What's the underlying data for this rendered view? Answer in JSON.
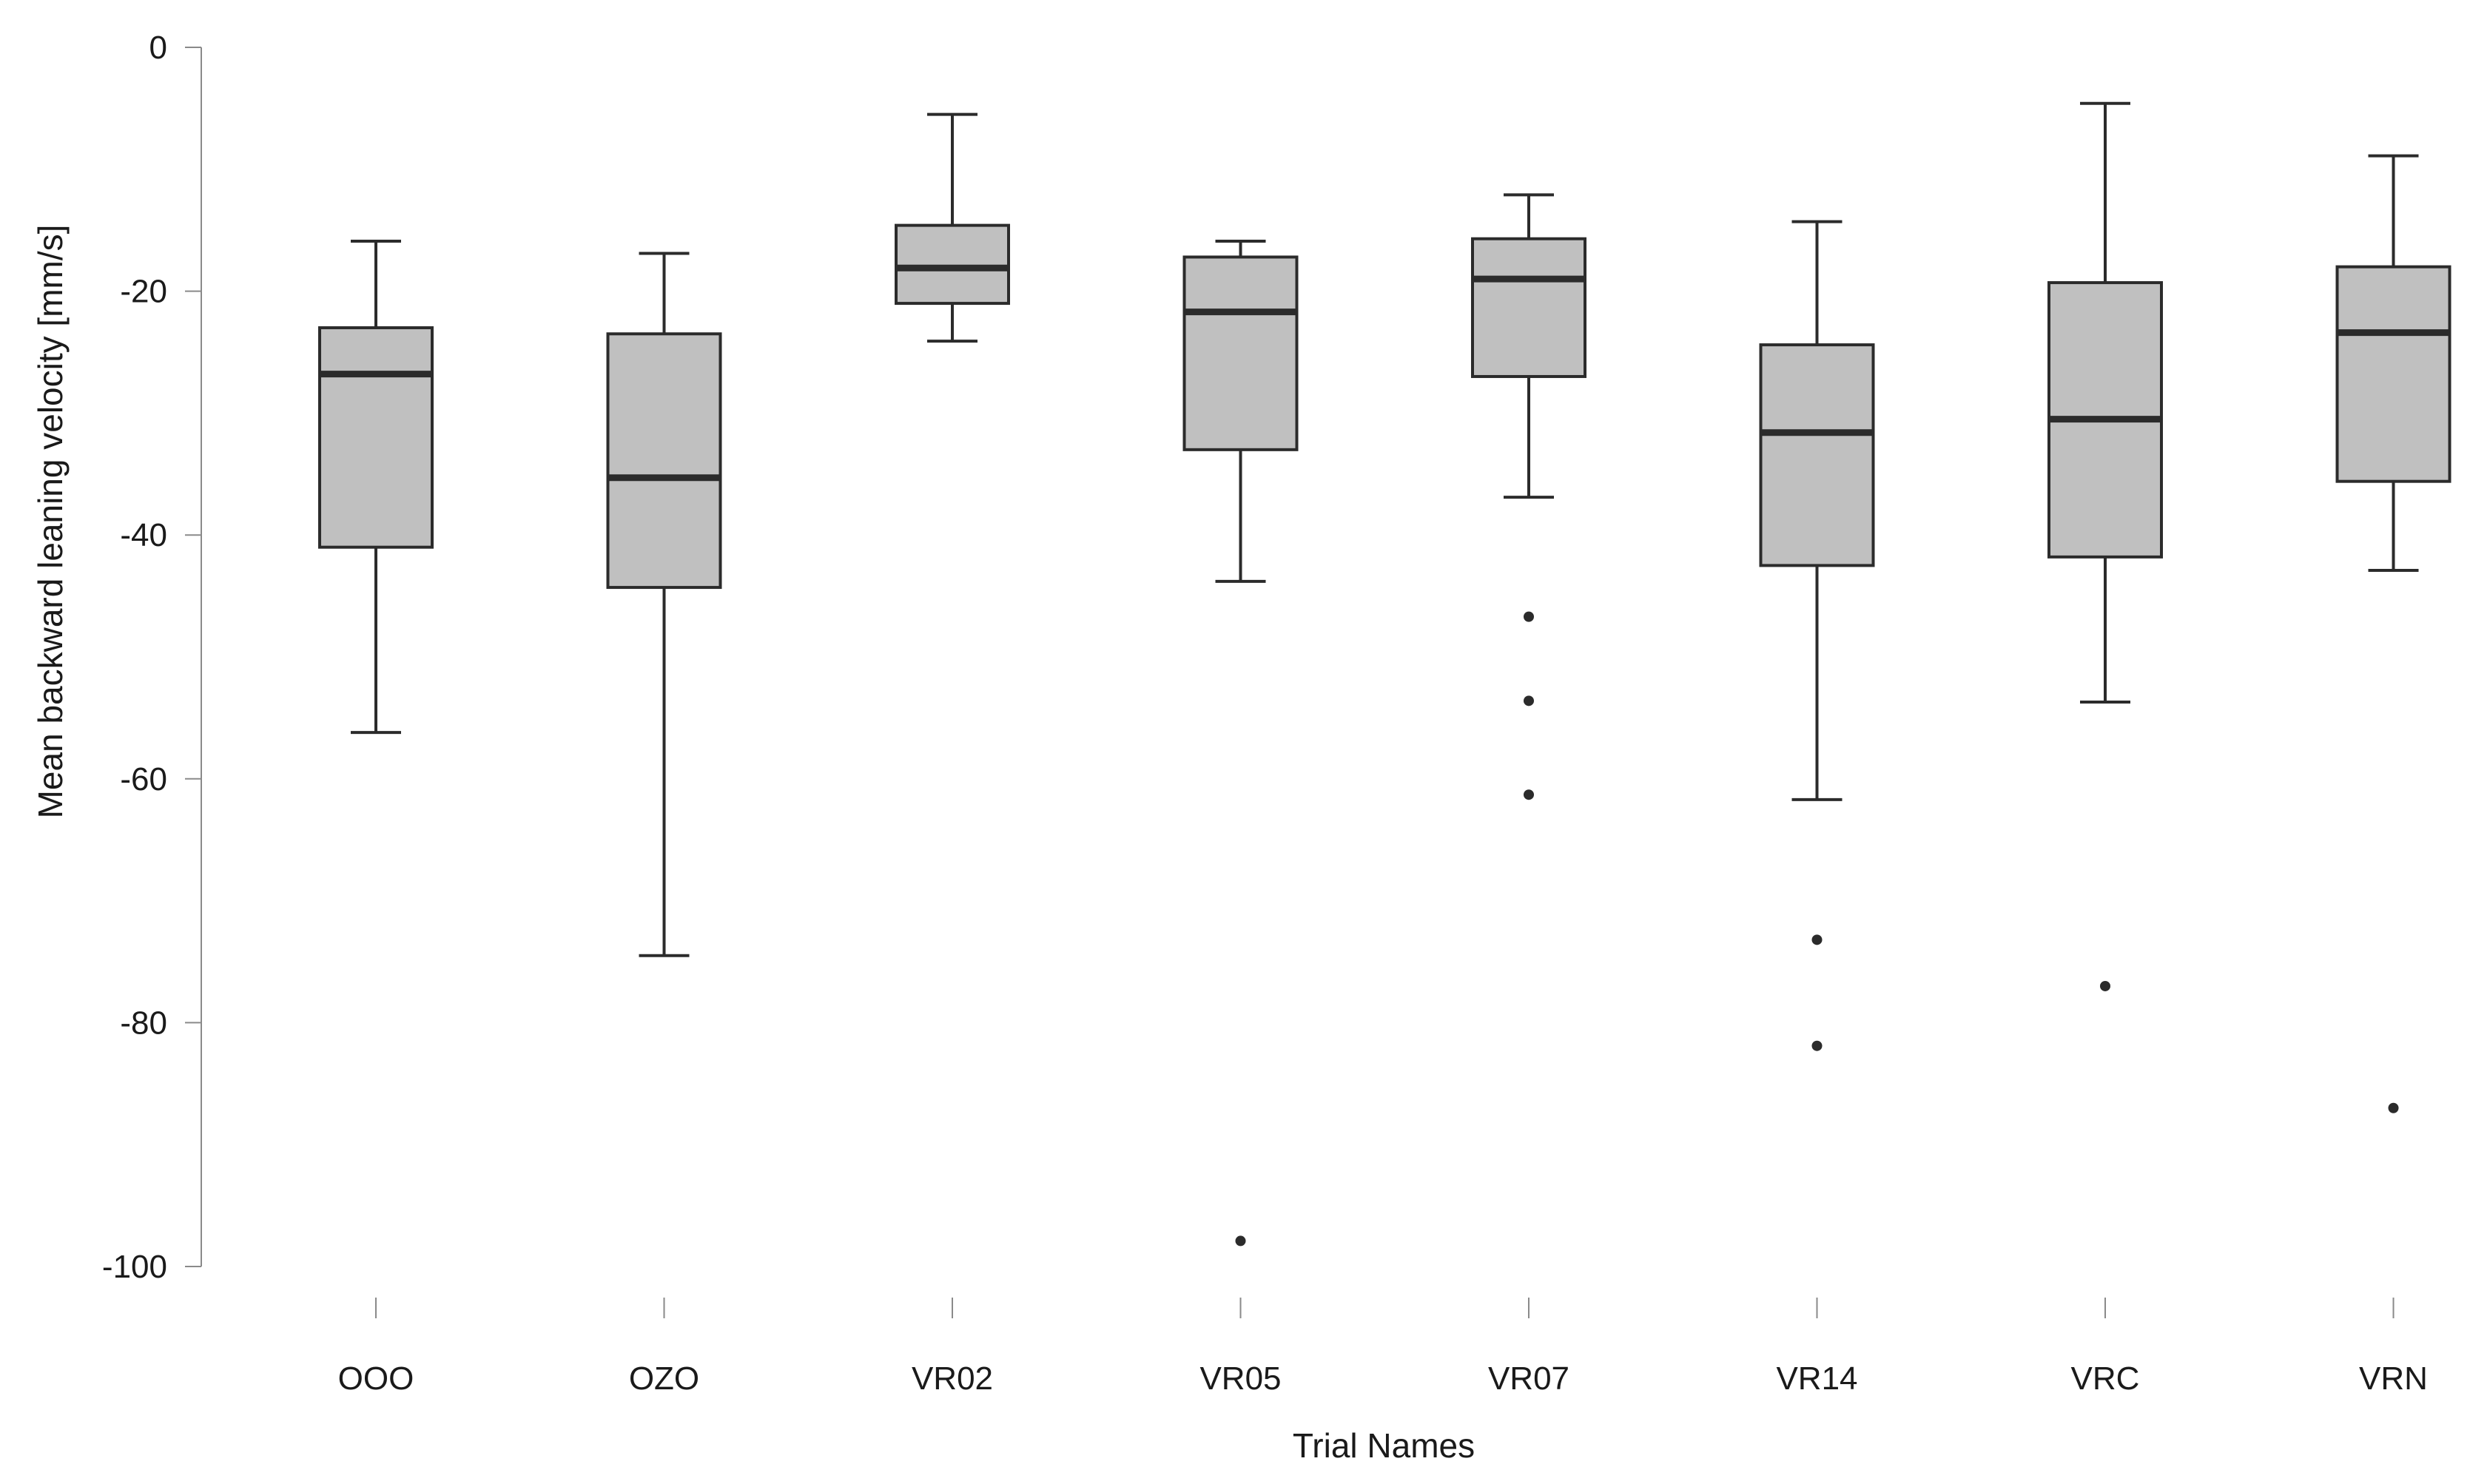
{
  "chart_data": {
    "type": "box",
    "xlabel": "Trial Names",
    "ylabel": "Mean backward leaning velocity [mm/s]",
    "ylim": [
      -100,
      0
    ],
    "yticks": [
      0,
      -20,
      -40,
      -60,
      -80,
      -100
    ],
    "yticklabels": [
      "0",
      "-20",
      "-40",
      "-60",
      "-80",
      "-100"
    ],
    "grid": false,
    "categories": [
      "OOO",
      "OZO",
      "VR02",
      "VR05",
      "VR07",
      "VR14",
      "VRC",
      "VRN"
    ],
    "boxes": [
      {
        "whisker_low": -56.2,
        "q1": -41.0,
        "median": -26.8,
        "q3": -23.0,
        "whisker_high": -15.9,
        "outliers": []
      },
      {
        "whisker_low": -74.5,
        "q1": -44.3,
        "median": -35.3,
        "q3": -23.5,
        "whisker_high": -16.9,
        "outliers": []
      },
      {
        "whisker_low": -24.1,
        "q1": -21.0,
        "median": -18.1,
        "q3": -14.6,
        "whisker_high": -5.5,
        "outliers": []
      },
      {
        "whisker_low": -43.8,
        "q1": -33.0,
        "median": -21.7,
        "q3": -17.2,
        "whisker_high": -15.9,
        "outliers": [
          -97.9
        ]
      },
      {
        "whisker_low": -36.9,
        "q1": -27.0,
        "median": -19.0,
        "q3": -15.7,
        "whisker_high": -12.1,
        "outliers": [
          -46.7,
          -53.6,
          -61.3
        ]
      },
      {
        "whisker_low": -61.7,
        "q1": -42.5,
        "median": -31.6,
        "q3": -24.4,
        "whisker_high": -14.3,
        "outliers": [
          -73.2,
          -81.9
        ]
      },
      {
        "whisker_low": -53.7,
        "q1": -41.8,
        "median": -30.5,
        "q3": -19.3,
        "whisker_high": -4.6,
        "outliers": [
          -77.0
        ]
      },
      {
        "whisker_low": -42.9,
        "q1": -35.6,
        "median": -23.4,
        "q3": -18.0,
        "whisker_high": -8.9,
        "outliers": [
          -87.0
        ]
      }
    ],
    "style": {
      "box_fill": "#c0c0c0",
      "box_stroke": "#2b2b2b",
      "median_color": "#2b2b2b",
      "axis_color": "#8a8a8a",
      "outlier_color": "#2b2b2b"
    }
  }
}
